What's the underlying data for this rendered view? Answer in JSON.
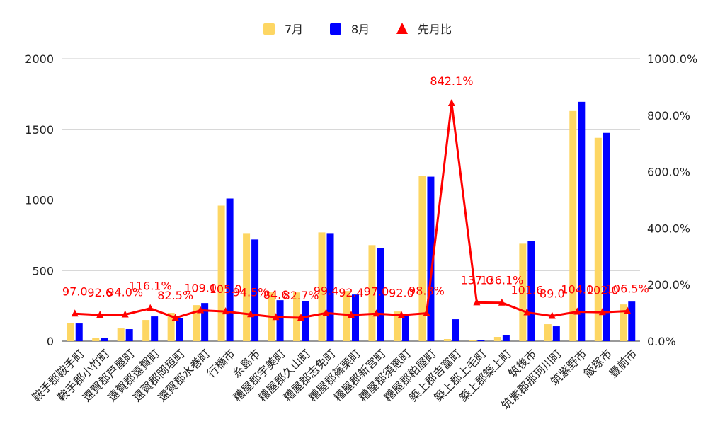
{
  "chart_data": {
    "type": "bar",
    "categories": [
      "鞍手郡鞍手町",
      "鞍手郡小竹町",
      "遠賀郡芦屋町",
      "遠賀郡遠賀町",
      "遠賀郡岡垣町",
      "遠賀郡水巻町",
      "行橋市",
      "糸島市",
      "糟屋郡宇美町",
      "糟屋郡久山町",
      "糟屋郡志免町",
      "糟屋郡篠栗町",
      "糟屋郡新宮町",
      "糟屋郡須恵町",
      "糟屋郡粕屋町",
      "築上郡吉富町",
      "築上郡上毛町",
      "築上郡築上町",
      "筑後市",
      "筑紫郡那珂川町",
      "筑紫野市",
      "飯塚市",
      "豊前市"
    ],
    "series": [
      {
        "name": "7月",
        "type": "bar",
        "axis": "left",
        "color": "#fdd663",
        "values": [
          130,
          20,
          90,
          150,
          200,
          255,
          960,
          765,
          345,
          345,
          770,
          355,
          680,
          210,
          1170,
          15,
          5,
          30,
          690,
          120,
          1630,
          1440,
          260
        ]
      },
      {
        "name": "8月",
        "type": "bar",
        "axis": "left",
        "color": "#0000ff",
        "values": [
          125,
          20,
          85,
          175,
          165,
          270,
          1010,
          720,
          290,
          285,
          765,
          330,
          660,
          190,
          1165,
          155,
          5,
          45,
          710,
          105,
          1695,
          1475,
          280
        ]
      },
      {
        "name": "先月比",
        "type": "line",
        "axis": "right",
        "color": "#ff0000",
        "values": [
          97.0,
          92.6,
          94.0,
          116.1,
          82.5,
          109.0,
          105.0,
          94.5,
          84.6,
          82.7,
          99.4,
          92.4,
          97.0,
          92.0,
          98.8,
          842.1,
          137.0,
          136.1,
          101.6,
          89.0,
          104.0,
          102.0,
          106.5
        ],
        "labels": [
          "97.0",
          "92.6",
          "94.0%",
          "116.1%",
          "82.5%",
          "109.0",
          "105.0",
          "94.5%",
          "84.6",
          "82.7%",
          "99.4",
          "92.4",
          "97.0",
          "92.0",
          "98.8%",
          "842.1%",
          "137.0",
          "136.1%",
          "101.6",
          "89.0",
          "104.0",
          "102.0",
          "106.5%"
        ]
      }
    ],
    "left_axis": {
      "ylim": [
        0,
        2000
      ],
      "ticks": [
        "0",
        "500",
        "1000",
        "1500",
        "2000"
      ]
    },
    "right_axis": {
      "ylim": [
        0,
        1000
      ],
      "ticks": [
        "0.0%",
        "200.0%",
        "400.0%",
        "600.0%",
        "800.0%",
        "1000.0%"
      ]
    },
    "legend": {
      "position": "top-center",
      "items": [
        "7月",
        "8月",
        "先月比"
      ]
    },
    "grid": true
  }
}
